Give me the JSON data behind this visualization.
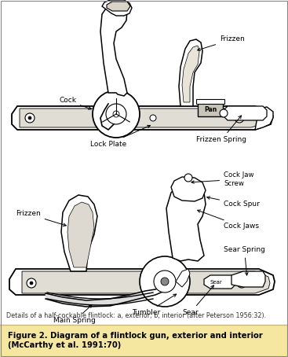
{
  "title_caption_line1": "Figure 2. Diagram of a flintlock gun, exterior and interior",
  "title_caption_line2": "(McCarthy et al. 1991:70)",
  "detail_caption": "Details of a half-cockable flintlock: a, exterior; b, interior (after Peterson 1956:32).",
  "caption_bg": "#f5e6a0",
  "bg_color": "#f0ece0",
  "figsize": [
    3.67,
    4.54
  ],
  "dpi": 100,
  "diagram_bg": "#e8e4d8"
}
